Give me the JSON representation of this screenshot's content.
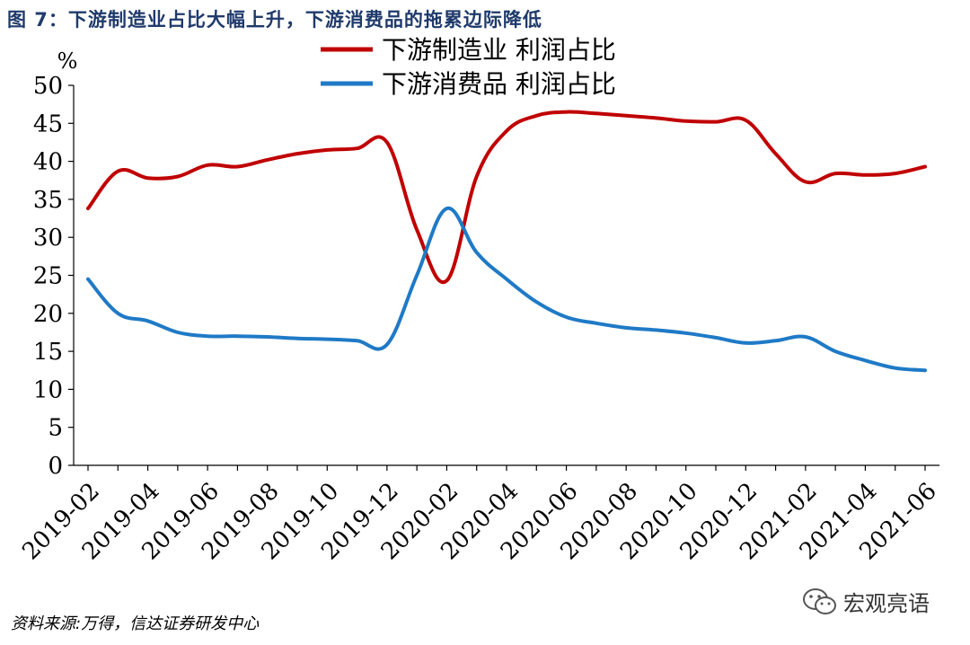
{
  "header": {
    "title": "图 7：下游制造业占比大幅上升，下游消费品的拖累边际降低"
  },
  "footer": {
    "source": "资料来源:万得，信达证券研发中心",
    "watermark": "宏观亮语"
  },
  "icons": {
    "watermark_icon": "wechat-icon"
  },
  "chart_data": {
    "type": "line",
    "ylabel": "%",
    "ylim": [
      0,
      50
    ],
    "yticks": [
      0,
      5,
      10,
      15,
      20,
      25,
      30,
      35,
      40,
      45,
      50
    ],
    "x_tick_labels": [
      "2019-02",
      "2019-04",
      "2019-06",
      "2019-08",
      "2019-10",
      "2019-12",
      "2020-02",
      "2020-04",
      "2020-06",
      "2020-08",
      "2020-10",
      "2020-12",
      "2021-02",
      "2021-04",
      "2021-06"
    ],
    "x": [
      "2019-02",
      "2019-03",
      "2019-04",
      "2019-05",
      "2019-06",
      "2019-07",
      "2019-08",
      "2019-09",
      "2019-10",
      "2019-11",
      "2019-12",
      "2020-01",
      "2020-02",
      "2020-03",
      "2020-04",
      "2020-05",
      "2020-06",
      "2020-07",
      "2020-08",
      "2020-09",
      "2020-10",
      "2020-11",
      "2020-12",
      "2021-01",
      "2021-02",
      "2021-03",
      "2021-04",
      "2021-05",
      "2021-06"
    ],
    "series": [
      {
        "name": "下游制造业 利润占比",
        "color": "#c00000",
        "values": [
          33.8,
          38.7,
          37.8,
          38.0,
          39.5,
          39.3,
          40.2,
          41.0,
          41.5,
          41.7,
          42.5,
          31.0,
          24.3,
          38.0,
          44.0,
          46.0,
          46.5,
          46.3,
          46.0,
          45.7,
          45.3,
          45.2,
          45.4,
          41.0,
          37.3,
          38.4,
          38.2,
          38.4,
          39.3
        ]
      },
      {
        "name": "下游消费品 利润占比",
        "color": "#1f7ac6",
        "values": [
          24.5,
          20.0,
          19.0,
          17.5,
          17.0,
          17.0,
          16.9,
          16.7,
          16.6,
          16.4,
          15.9,
          25.0,
          33.8,
          28.0,
          24.5,
          21.5,
          19.5,
          18.7,
          18.1,
          17.8,
          17.4,
          16.8,
          16.1,
          16.4,
          16.9,
          15.0,
          13.8,
          12.8,
          12.5
        ]
      }
    ],
    "legend_position": "top-center",
    "grid": false
  }
}
